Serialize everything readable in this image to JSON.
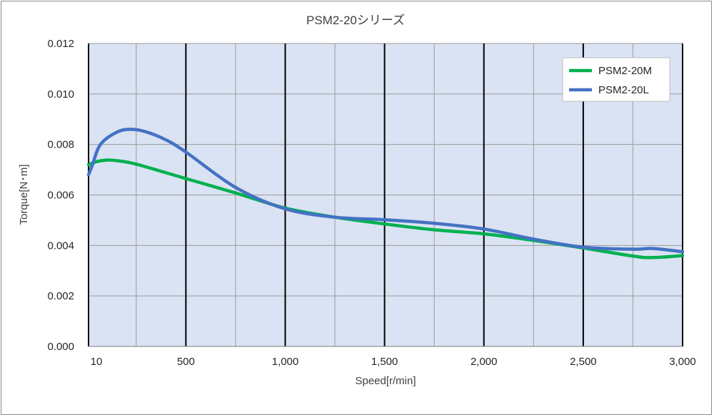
{
  "chart_data": {
    "type": "line",
    "title": "PSM2-20シリーズ",
    "xlabel": "Speed[r/min]",
    "ylabel": "Torque[N･m]",
    "xlim": [
      10,
      3000
    ],
    "ylim": [
      0,
      0.012
    ],
    "x_ticks": [
      {
        "value": 10,
        "label": "10"
      },
      {
        "value": 500,
        "label": "500"
      },
      {
        "value": 1000,
        "label": "1,000"
      },
      {
        "value": 1500,
        "label": "1,500"
      },
      {
        "value": 2000,
        "label": "2,000"
      },
      {
        "value": 2500,
        "label": "2,500"
      },
      {
        "value": 3000,
        "label": "3,000"
      }
    ],
    "y_ticks": [
      {
        "value": 0,
        "label": "0.000"
      },
      {
        "value": 0.002,
        "label": "0.002"
      },
      {
        "value": 0.004,
        "label": "0.004"
      },
      {
        "value": 0.006,
        "label": "0.006"
      },
      {
        "value": 0.008,
        "label": "0.008"
      },
      {
        "value": 0.01,
        "label": "0.010"
      },
      {
        "value": 0.012,
        "label": "0.012"
      }
    ],
    "grid": true,
    "legend_position": "top-right",
    "series": [
      {
        "name": "PSM2-20M",
        "color": "#00b050",
        "points": [
          [
            10,
            0.0072
          ],
          [
            50,
            0.00732
          ],
          [
            100,
            0.00738
          ],
          [
            150,
            0.00736
          ],
          [
            250,
            0.00722
          ],
          [
            500,
            0.00665
          ],
          [
            750,
            0.00608
          ],
          [
            1000,
            0.00548
          ],
          [
            1250,
            0.00512
          ],
          [
            1500,
            0.00485
          ],
          [
            1750,
            0.00462
          ],
          [
            2000,
            0.00446
          ],
          [
            2250,
            0.0042
          ],
          [
            2500,
            0.0039
          ],
          [
            2750,
            0.00358
          ],
          [
            2850,
            0.00352
          ],
          [
            3000,
            0.0036
          ]
        ]
      },
      {
        "name": "PSM2-20L",
        "color": "#4472c4",
        "points": [
          [
            10,
            0.0068
          ],
          [
            30,
            0.0072
          ],
          [
            70,
            0.008
          ],
          [
            150,
            0.00848
          ],
          [
            220,
            0.0086
          ],
          [
            300,
            0.0085
          ],
          [
            400,
            0.00818
          ],
          [
            500,
            0.0077
          ],
          [
            750,
            0.0063
          ],
          [
            1000,
            0.00545
          ],
          [
            1250,
            0.00512
          ],
          [
            1500,
            0.00502
          ],
          [
            1750,
            0.00488
          ],
          [
            2000,
            0.00465
          ],
          [
            2250,
            0.00425
          ],
          [
            2500,
            0.00393
          ],
          [
            2750,
            0.00385
          ],
          [
            2850,
            0.00388
          ],
          [
            3000,
            0.00375
          ]
        ]
      }
    ]
  }
}
